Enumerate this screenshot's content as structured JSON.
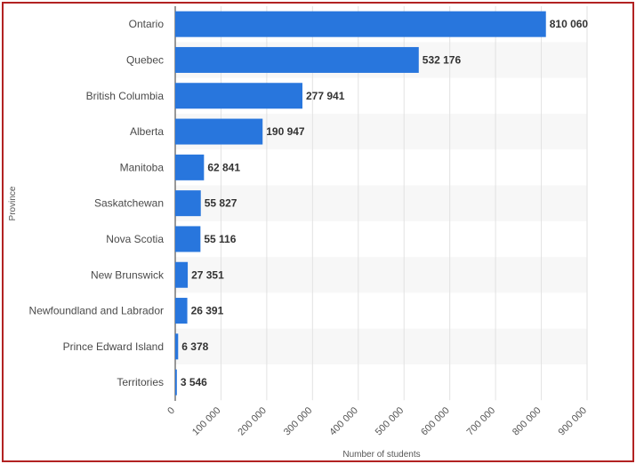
{
  "chart_data": {
    "type": "bar",
    "orientation": "horizontal",
    "categories": [
      "Ontario",
      "Quebec",
      "British Columbia",
      "Alberta",
      "Manitoba",
      "Saskatchewan",
      "Nova Scotia",
      "New Brunswick",
      "Newfoundland and Labrador",
      "Prince Edward Island",
      "Territories"
    ],
    "values": [
      810060,
      532176,
      277941,
      190947,
      62841,
      55827,
      55116,
      27351,
      26391,
      6378,
      3546
    ],
    "value_labels": [
      "810 060",
      "532 176",
      "277 941",
      "190 947",
      "62 841",
      "55 827",
      "55 116",
      "27 351",
      "26 391",
      "6 378",
      "3 546"
    ],
    "xlabel": "Number of students",
    "ylabel": "Province",
    "xlim": [
      0,
      900000
    ],
    "xticks": [
      "0",
      "100 000",
      "200 000",
      "300 000",
      "400 000",
      "500 000",
      "600 000",
      "700 000",
      "800 000",
      "900 000"
    ],
    "grid": true,
    "bar_color": "#2876dd"
  }
}
